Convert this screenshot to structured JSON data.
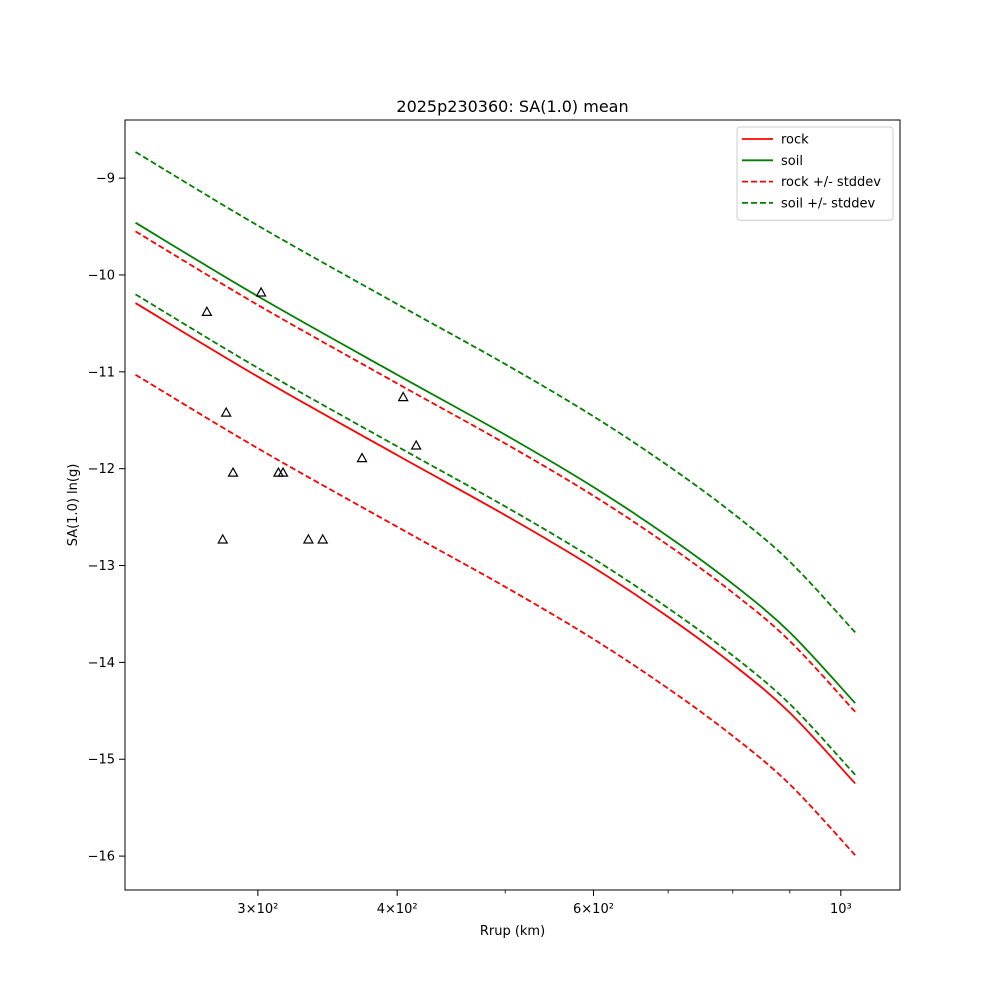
{
  "chart_data": {
    "type": "line",
    "title": "2025p230360: SA(1.0) mean",
    "xlabel": "Rrup (km)",
    "ylabel": "SA(1.0) ln(g)",
    "xscale": "log",
    "xlim": [
      228,
      1130
    ],
    "ylim": [
      -16.35,
      -8.4
    ],
    "grid": false,
    "legend_position": "top-right",
    "x_ticks": [
      {
        "value": 300,
        "label": "3×10²"
      },
      {
        "value": 400,
        "label": "4×10²"
      },
      {
        "value": 600,
        "label": "6×10²"
      },
      {
        "value": 1000,
        "label": "10³"
      }
    ],
    "y_ticks": [
      {
        "value": -9,
        "label": "−9"
      },
      {
        "value": -10,
        "label": "−10"
      },
      {
        "value": -11,
        "label": "−11"
      },
      {
        "value": -12,
        "label": "−12"
      },
      {
        "value": -13,
        "label": "−13"
      },
      {
        "value": -14,
        "label": "−14"
      },
      {
        "value": -15,
        "label": "−15"
      },
      {
        "value": -16,
        "label": "−16"
      }
    ],
    "series": [
      {
        "name": "rock",
        "color": "#ff0000",
        "dash": false,
        "in_legend": true,
        "x": [
          233,
          300,
          400,
          500,
          600,
          700,
          800,
          900,
          1030
        ],
        "y": [
          -10.29,
          -11.05,
          -11.86,
          -12.48,
          -13.02,
          -13.53,
          -14.02,
          -14.52,
          -15.25
        ]
      },
      {
        "name": "soil",
        "color": "#008000",
        "dash": false,
        "in_legend": true,
        "x": [
          233,
          300,
          400,
          500,
          600,
          700,
          800,
          900,
          1030
        ],
        "y": [
          -9.46,
          -10.22,
          -11.03,
          -11.65,
          -12.19,
          -12.7,
          -13.19,
          -13.69,
          -14.42
        ]
      },
      {
        "name": "rock +/- stddev",
        "color": "#ff0000",
        "dash": true,
        "in_legend": true,
        "x": [
          233,
          300,
          400,
          500,
          600,
          700,
          800,
          900,
          1030
        ],
        "y": [
          -9.55,
          -10.31,
          -11.12,
          -11.74,
          -12.28,
          -12.79,
          -13.28,
          -13.78,
          -14.51
        ]
      },
      {
        "name": "",
        "color": "#ff0000",
        "dash": true,
        "in_legend": false,
        "x": [
          233,
          300,
          400,
          500,
          600,
          700,
          800,
          900,
          1030
        ],
        "y": [
          -11.03,
          -11.79,
          -12.6,
          -13.22,
          -13.76,
          -14.27,
          -14.76,
          -15.26,
          -15.99
        ]
      },
      {
        "name": "soil +/- stddev",
        "color": "#008000",
        "dash": true,
        "in_legend": true,
        "x": [
          233,
          300,
          400,
          500,
          600,
          700,
          800,
          900,
          1030
        ],
        "y": [
          -8.73,
          -9.49,
          -10.3,
          -10.92,
          -11.46,
          -11.97,
          -12.46,
          -12.96,
          -13.69
        ]
      },
      {
        "name": "",
        "color": "#008000",
        "dash": true,
        "in_legend": false,
        "x": [
          233,
          300,
          400,
          500,
          600,
          700,
          800,
          900,
          1030
        ],
        "y": [
          -10.2,
          -10.96,
          -11.77,
          -12.39,
          -12.93,
          -13.44,
          -13.93,
          -14.43,
          -15.16
        ]
      }
    ],
    "observations": {
      "marker": "triangle",
      "color": "#000000",
      "x": [
        270,
        281,
        302,
        279,
        285,
        313,
        316,
        333,
        343,
        372,
        405,
        416
      ],
      "y": [
        -10.38,
        -11.42,
        -10.18,
        -12.73,
        -12.04,
        -12.04,
        -12.04,
        -12.73,
        -12.73,
        -11.89,
        -11.26,
        -11.76
      ]
    }
  }
}
